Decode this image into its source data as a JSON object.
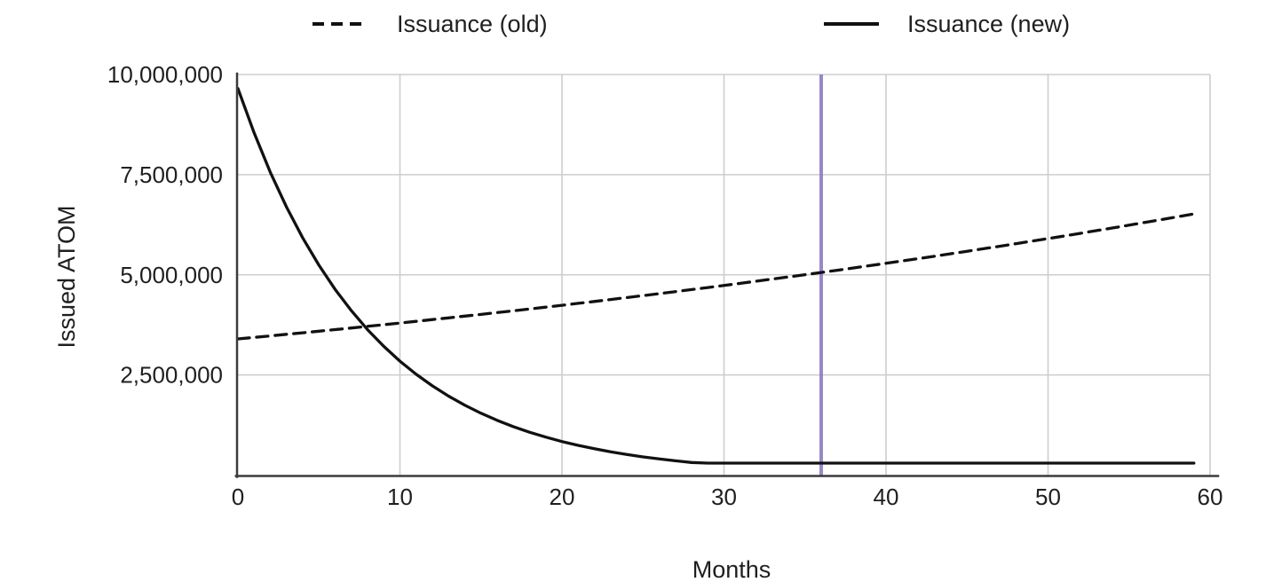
{
  "chart_data": {
    "type": "line",
    "title": "",
    "xlabel": "Months",
    "ylabel": "Issued ATOM",
    "xlim": [
      0,
      60
    ],
    "ylim": [
      0,
      10000000
    ],
    "x_ticks": [
      0,
      10,
      20,
      30,
      40,
      50,
      60
    ],
    "y_ticks": [
      {
        "value": 2500000,
        "label": "2,500,000"
      },
      {
        "value": 5000000,
        "label": "5,000,000"
      },
      {
        "value": 7500000,
        "label": "7,500,000"
      },
      {
        "value": 10000000,
        "label": "10,000,000"
      }
    ],
    "grid": true,
    "legend_position": "top",
    "x": [
      0,
      1,
      2,
      3,
      4,
      5,
      6,
      7,
      8,
      9,
      10,
      11,
      12,
      13,
      14,
      15,
      16,
      17,
      18,
      19,
      20,
      21,
      22,
      23,
      24,
      25,
      26,
      27,
      28,
      29,
      30,
      31,
      32,
      33,
      34,
      35,
      36,
      37,
      38,
      39,
      40,
      41,
      42,
      43,
      44,
      45,
      46,
      47,
      48,
      49,
      50,
      51,
      52,
      53,
      54,
      55,
      56,
      57,
      58,
      59
    ],
    "series": [
      {
        "name": "Issuance (old)",
        "line_style": "dashed",
        "color": "#111111",
        "values": [
          3400000,
          3438000,
          3476000,
          3514000,
          3553000,
          3593000,
          3633000,
          3673000,
          3714000,
          3755000,
          3797000,
          3839000,
          3882000,
          3925000,
          3968000,
          4012000,
          4057000,
          4102000,
          4147000,
          4193000,
          4240000,
          4287000,
          4335000,
          4383000,
          4431000,
          4481000,
          4530000,
          4581000,
          4631000,
          4683000,
          4735000,
          4787000,
          4841000,
          4894000,
          4949000,
          5003000,
          5059000,
          5115000,
          5172000,
          5229000,
          5287000,
          5346000,
          5405000,
          5465000,
          5526000,
          5587000,
          5649000,
          5712000,
          5776000,
          5840000,
          5905000,
          5970000,
          6036000,
          6103000,
          6171000,
          6240000,
          6309000,
          6379000,
          6450000,
          6521000
        ]
      },
      {
        "name": "Issuance (new)",
        "line_style": "solid",
        "color": "#111111",
        "values": [
          9650000,
          8540000,
          7558000,
          6689000,
          5920000,
          5239000,
          4636000,
          4103000,
          3631000,
          3214000,
          2844000,
          2517000,
          2228000,
          1971000,
          1745000,
          1544000,
          1367000,
          1209000,
          1070000,
          947000,
          838000,
          742000,
          657000,
          581000,
          514000,
          455000,
          403000,
          356000,
          315000,
          300000,
          300000,
          300000,
          300000,
          300000,
          300000,
          300000,
          300000,
          300000,
          300000,
          300000,
          300000,
          300000,
          300000,
          300000,
          300000,
          300000,
          300000,
          300000,
          300000,
          300000,
          300000,
          300000,
          300000,
          300000,
          300000,
          300000,
          300000,
          300000,
          300000,
          300000
        ]
      }
    ],
    "annotations": [
      {
        "type": "vline",
        "x": 36,
        "color": "#8E7CC3"
      }
    ]
  },
  "colors": {
    "background": "#ffffff",
    "gridline": "#cdcdcd",
    "spine": "#3b3b3b",
    "text": "#1f1f1f",
    "vline_accent": "#8E7CC3"
  }
}
